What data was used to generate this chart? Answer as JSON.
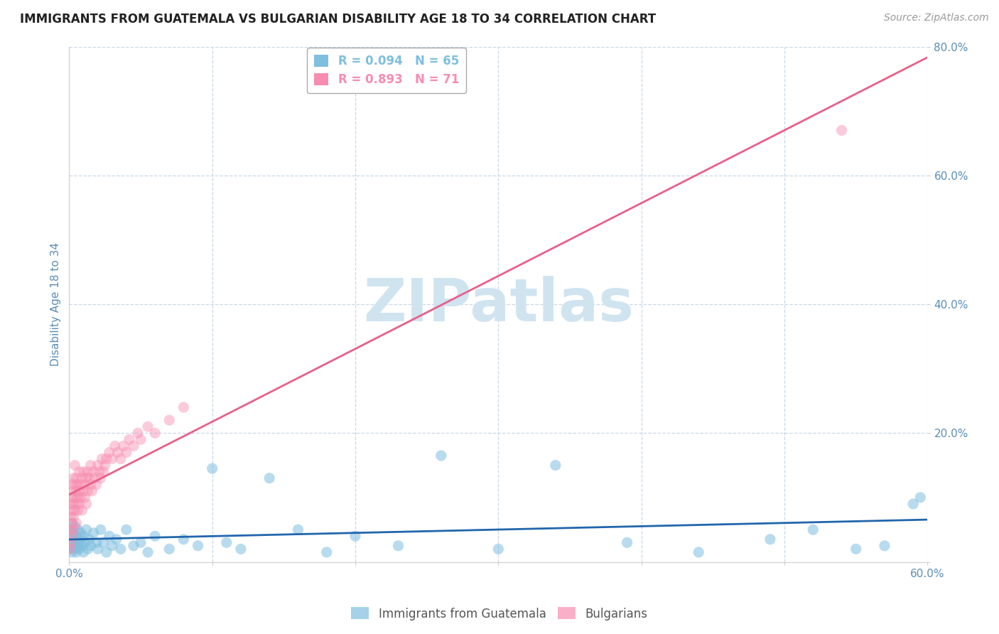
{
  "title": "IMMIGRANTS FROM GUATEMALA VS BULGARIAN DISABILITY AGE 18 TO 34 CORRELATION CHART",
  "source": "Source: ZipAtlas.com",
  "ylabel": "Disability Age 18 to 34",
  "xlim": [
    0.0,
    0.6
  ],
  "ylim": [
    0.0,
    0.8
  ],
  "xticks": [
    0.0,
    0.1,
    0.2,
    0.3,
    0.4,
    0.5,
    0.6
  ],
  "yticks": [
    0.0,
    0.2,
    0.4,
    0.6,
    0.8
  ],
  "xtick_labels": [
    "0.0%",
    "",
    "",
    "",
    "",
    "",
    "60.0%"
  ],
  "ytick_labels": [
    "",
    "20.0%",
    "40.0%",
    "60.0%",
    "80.0%"
  ],
  "watermark": "ZIPatlas",
  "blue_R": 0.094,
  "blue_N": 65,
  "pink_R": 0.893,
  "pink_N": 71,
  "blue_color": "#7fbfdf",
  "pink_color": "#f78db0",
  "blue_line_color": "#2166ac",
  "pink_line_color": "#e8608a",
  "background_color": "#ffffff",
  "grid_color": "#c8d8e8",
  "title_color": "#222222",
  "axis_color": "#5b8db8",
  "watermark_color": "#d0e4f0",
  "blue_scatter_x": [
    0.001,
    0.001,
    0.001,
    0.002,
    0.002,
    0.002,
    0.003,
    0.003,
    0.003,
    0.004,
    0.004,
    0.005,
    0.005,
    0.005,
    0.006,
    0.006,
    0.007,
    0.007,
    0.008,
    0.008,
    0.009,
    0.01,
    0.01,
    0.011,
    0.012,
    0.013,
    0.014,
    0.015,
    0.017,
    0.019,
    0.02,
    0.022,
    0.024,
    0.026,
    0.028,
    0.03,
    0.033,
    0.036,
    0.04,
    0.045,
    0.05,
    0.055,
    0.06,
    0.07,
    0.08,
    0.09,
    0.1,
    0.11,
    0.12,
    0.14,
    0.16,
    0.18,
    0.2,
    0.23,
    0.26,
    0.3,
    0.34,
    0.39,
    0.44,
    0.49,
    0.52,
    0.55,
    0.57,
    0.59,
    0.595
  ],
  "blue_scatter_y": [
    0.03,
    0.05,
    0.02,
    0.04,
    0.06,
    0.015,
    0.035,
    0.025,
    0.045,
    0.02,
    0.055,
    0.03,
    0.015,
    0.04,
    0.025,
    0.05,
    0.03,
    0.02,
    0.035,
    0.045,
    0.025,
    0.04,
    0.015,
    0.03,
    0.05,
    0.02,
    0.035,
    0.025,
    0.045,
    0.03,
    0.02,
    0.05,
    0.03,
    0.015,
    0.04,
    0.025,
    0.035,
    0.02,
    0.05,
    0.025,
    0.03,
    0.015,
    0.04,
    0.02,
    0.035,
    0.025,
    0.145,
    0.03,
    0.02,
    0.13,
    0.05,
    0.015,
    0.04,
    0.025,
    0.165,
    0.02,
    0.15,
    0.03,
    0.015,
    0.035,
    0.05,
    0.02,
    0.025,
    0.09,
    0.1
  ],
  "pink_scatter_x": [
    0.001,
    0.001,
    0.001,
    0.001,
    0.001,
    0.002,
    0.002,
    0.002,
    0.002,
    0.002,
    0.003,
    0.003,
    0.003,
    0.003,
    0.003,
    0.004,
    0.004,
    0.004,
    0.004,
    0.005,
    0.005,
    0.005,
    0.005,
    0.006,
    0.006,
    0.006,
    0.007,
    0.007,
    0.007,
    0.008,
    0.008,
    0.009,
    0.009,
    0.01,
    0.01,
    0.011,
    0.011,
    0.012,
    0.012,
    0.013,
    0.013,
    0.014,
    0.015,
    0.015,
    0.016,
    0.017,
    0.018,
    0.019,
    0.02,
    0.021,
    0.022,
    0.023,
    0.024,
    0.025,
    0.026,
    0.028,
    0.03,
    0.032,
    0.034,
    0.036,
    0.038,
    0.04,
    0.042,
    0.045,
    0.048,
    0.05,
    0.055,
    0.06,
    0.07,
    0.08,
    0.54
  ],
  "pink_scatter_y": [
    0.03,
    0.05,
    0.07,
    0.02,
    0.09,
    0.06,
    0.08,
    0.1,
    0.04,
    0.12,
    0.07,
    0.09,
    0.11,
    0.05,
    0.13,
    0.08,
    0.1,
    0.12,
    0.15,
    0.09,
    0.11,
    0.06,
    0.13,
    0.1,
    0.12,
    0.08,
    0.11,
    0.14,
    0.09,
    0.12,
    0.1,
    0.13,
    0.08,
    0.11,
    0.14,
    0.1,
    0.12,
    0.13,
    0.09,
    0.14,
    0.11,
    0.13,
    0.12,
    0.15,
    0.11,
    0.14,
    0.13,
    0.12,
    0.15,
    0.14,
    0.13,
    0.16,
    0.14,
    0.15,
    0.16,
    0.17,
    0.16,
    0.18,
    0.17,
    0.16,
    0.18,
    0.17,
    0.19,
    0.18,
    0.2,
    0.19,
    0.21,
    0.2,
    0.22,
    0.24,
    0.67
  ]
}
